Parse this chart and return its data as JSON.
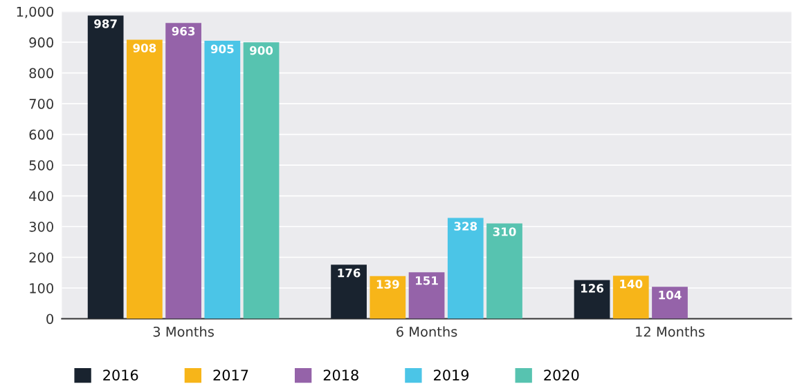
{
  "chart_data": {
    "type": "bar",
    "categories": [
      "3 Months",
      "6 Months",
      "12 Months"
    ],
    "series": [
      {
        "name": "2016",
        "color": "#19232f",
        "values": [
          987,
          176,
          126
        ],
        "value_labels": [
          "987",
          "176",
          "126"
        ]
      },
      {
        "name": "2017",
        "color": "#f7b519",
        "values": [
          908,
          139,
          140
        ],
        "value_labels": [
          "908",
          "139",
          "140"
        ]
      },
      {
        "name": "2018",
        "color": "#9563a9",
        "values": [
          963,
          151,
          104
        ],
        "value_labels": [
          "963",
          "151",
          "104"
        ]
      },
      {
        "name": "2019",
        "color": "#4bc5e7",
        "values": [
          905,
          328,
          0
        ],
        "value_labels": [
          "905",
          "328",
          null
        ]
      },
      {
        "name": "2020",
        "color": "#57c3b0",
        "values": [
          900,
          310,
          0
        ],
        "value_labels": [
          "900",
          "310",
          null
        ]
      }
    ],
    "ylim": [
      0,
      1000
    ],
    "yticks": [
      0,
      100,
      200,
      300,
      400,
      500,
      600,
      700,
      800,
      900,
      {
        "value": 1000,
        "label": "1,000"
      }
    ],
    "grid": "y",
    "legend": "bottom left"
  }
}
